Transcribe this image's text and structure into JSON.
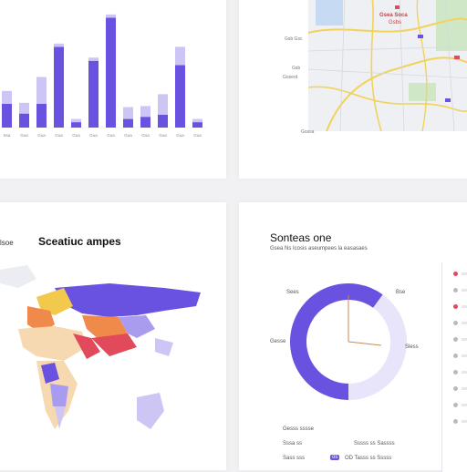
{
  "colors": {
    "accent": "#6a52e0",
    "accent_light": "#a99cf0",
    "accent_pale": "#cdc6f5",
    "gauge_track": "#e8e5fb",
    "orange": "#f08a4b",
    "red": "#e04a5a",
    "yellow": "#f2c94c",
    "map_road": "#f1d35c",
    "map_bg": "#eef0f3",
    "map_park": "#cfe7c6",
    "map_water": "#bcd6f2"
  },
  "bar_card": {
    "chart_data": {
      "type": "bar",
      "categories": [
        "Ssa",
        "Gua",
        "Gua",
        "Gua",
        "Gua",
        "Gua",
        "Gua",
        "Gua",
        "Gua",
        "Gua",
        "Gua",
        "Gua"
      ],
      "series": [
        {
          "values": [
            22,
            13,
            22,
            75,
            5,
            62,
            102,
            8,
            10,
            12,
            58,
            5
          ]
        },
        {
          "values": [
            12,
            10,
            25,
            3,
            3,
            3,
            3,
            11,
            10,
            19,
            17,
            3
          ]
        }
      ]
    }
  },
  "map_card": {
    "labels": [
      {
        "id": "top-red",
        "text": "Gsea Soca"
      },
      {
        "id": "top-red2",
        "text": "Gsbs"
      },
      {
        "id": "left-1",
        "text": "Gsb Gsc"
      },
      {
        "id": "left-2",
        "text": "Gsb"
      },
      {
        "id": "left-3",
        "text": "Goserd"
      },
      {
        "id": "bottom",
        "text": "Gossa"
      }
    ]
  },
  "world_card": {
    "title": "Sceatiuc ampes",
    "side_label": "lsoe"
  },
  "gauge_card": {
    "title": "Sonteas one",
    "subtitle": "Gsea Ns Icosis aseumpees la easasaes",
    "labels": {
      "top_left": "Sees",
      "top_right": "Bse",
      "mid_left": "Gesse",
      "mid_right": "Sless"
    },
    "chart_data": {
      "type": "pie",
      "values": [
        60,
        40
      ]
    },
    "rows": [
      {
        "label": "Gesss sssse"
      },
      {
        "label": "Sssa ss",
        "value": "Sssss ss Sassss"
      },
      {
        "label": "Sass sss",
        "value": "OD Tasss ss Sssss",
        "badge": "os"
      }
    ],
    "side_list": [
      "",
      "",
      "",
      "",
      "",
      "",
      "",
      "",
      "",
      ""
    ]
  }
}
